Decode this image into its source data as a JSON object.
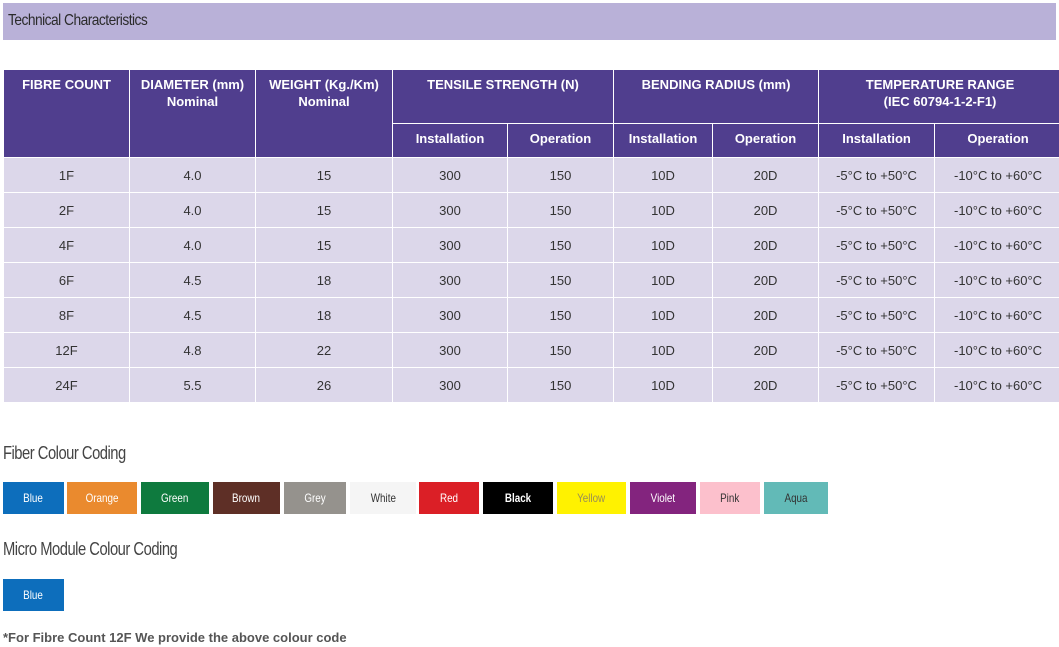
{
  "section_title": "Technical Characteristics",
  "table": {
    "headers": {
      "fibre_count": "FIBRE COUNT",
      "diameter_l1": "DIAMETER (mm)",
      "diameter_l2": "Nominal",
      "weight_l1": "WEIGHT (Kg./Km)",
      "weight_l2": "Nominal",
      "tensile": "TENSILE STRENGTH (N)",
      "bending": "BENDING RADIUS (mm)",
      "temp_l1": "TEMPERATURE RANGE",
      "temp_l2": "(IEC 60794-1-2-F1)",
      "installation": "Installation",
      "operation": "Operation"
    },
    "rows": [
      [
        "1F",
        "4.0",
        "15",
        "300",
        "150",
        "10D",
        "20D",
        "-5°C to +50°C",
        "-10°C to +60°C"
      ],
      [
        "2F",
        "4.0",
        "15",
        "300",
        "150",
        "10D",
        "20D",
        "-5°C to +50°C",
        "-10°C to +60°C"
      ],
      [
        "4F",
        "4.0",
        "15",
        "300",
        "150",
        "10D",
        "20D",
        "-5°C to +50°C",
        "-10°C to +60°C"
      ],
      [
        "6F",
        "4.5",
        "18",
        "300",
        "150",
        "10D",
        "20D",
        "-5°C to +50°C",
        "-10°C to +60°C"
      ],
      [
        "8F",
        "4.5",
        "18",
        "300",
        "150",
        "10D",
        "20D",
        "-5°C to +50°C",
        "-10°C to +60°C"
      ],
      [
        "12F",
        "4.8",
        "22",
        "300",
        "150",
        "10D",
        "20D",
        "-5°C to +50°C",
        "-10°C to +60°C"
      ],
      [
        "24F",
        "5.5",
        "26",
        "300",
        "150",
        "10D",
        "20D",
        "-5°C to +50°C",
        "-10°C to +60°C"
      ]
    ]
  },
  "fiber_colour": {
    "title": "Fiber Colour Coding",
    "items": [
      {
        "label": "Blue",
        "bg": "#0d6ebc",
        "fg": "#ffffff"
      },
      {
        "label": "Orange",
        "bg": "#ea8a2e",
        "fg": "#ffffff"
      },
      {
        "label": "Green",
        "bg": "#0e7a3e",
        "fg": "#ffffff"
      },
      {
        "label": "Brown",
        "bg": "#5e2f26",
        "fg": "#ffffff"
      },
      {
        "label": "Grey",
        "bg": "#95928d",
        "fg": "#ffffff"
      },
      {
        "label": "White",
        "bg": "#f5f5f5",
        "fg": "#333333"
      },
      {
        "label": "Red",
        "bg": "#db1f26",
        "fg": "#ffffff"
      },
      {
        "label": "Black",
        "bg": "#000000",
        "fg": "#ffffff"
      },
      {
        "label": "Yellow",
        "bg": "#fff200",
        "fg": "#9a8f55"
      },
      {
        "label": "Violet",
        "bg": "#83247e",
        "fg": "#ffffff"
      },
      {
        "label": "Pink",
        "bg": "#fcc0cc",
        "fg": "#333333"
      },
      {
        "label": "Aqua",
        "bg": "#62bab7",
        "fg": "#333333"
      }
    ]
  },
  "micro_module": {
    "title": "Micro Module Colour Coding",
    "items": [
      {
        "label": "Blue",
        "bg": "#0d6ebc",
        "fg": "#ffffff"
      }
    ]
  },
  "note": "*For Fibre Count 12F We provide the above colour code"
}
